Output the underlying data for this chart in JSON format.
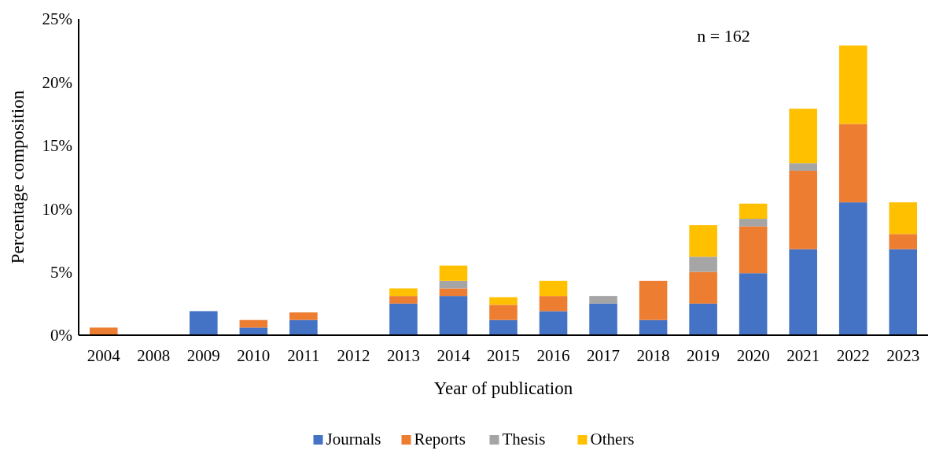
{
  "chart_data": {
    "type": "bar",
    "stacked": true,
    "xlabel": "Year of publication",
    "ylabel": "Percentage composition",
    "annotations": [
      "n = 162"
    ],
    "categories": [
      "2004",
      "2008",
      "2009",
      "2010",
      "2011",
      "2012",
      "2013",
      "2014",
      "2015",
      "2016",
      "2017",
      "2018",
      "2019",
      "2020",
      "2021",
      "2022",
      "2023"
    ],
    "series": [
      {
        "name": "Journals",
        "color": "#4472c4",
        "values": [
          0,
          0,
          1.9,
          0.6,
          1.2,
          0,
          2.5,
          3.1,
          1.2,
          1.9,
          2.5,
          1.2,
          2.5,
          4.9,
          6.8,
          10.5,
          6.8
        ]
      },
      {
        "name": "Reports",
        "color": "#ed7d31",
        "values": [
          0.6,
          0,
          0,
          0.6,
          0.6,
          0,
          0.6,
          0.6,
          1.2,
          1.2,
          0,
          3.1,
          2.5,
          3.7,
          6.2,
          6.2,
          1.2
        ]
      },
      {
        "name": "Thesis",
        "color": "#a5a5a5",
        "values": [
          0,
          0,
          0,
          0,
          0,
          0,
          0,
          0.6,
          0,
          0,
          0.6,
          0,
          1.2,
          0.6,
          0.6,
          0,
          0
        ]
      },
      {
        "name": "Others",
        "color": "#ffc000",
        "values": [
          0,
          0,
          0,
          0,
          0,
          0,
          0.6,
          1.2,
          0.6,
          1.2,
          0,
          0,
          2.5,
          1.2,
          4.3,
          6.2,
          2.5
        ]
      }
    ],
    "ylim": [
      0,
      25
    ],
    "yticks": [
      {
        "value": 0,
        "label": "0%"
      },
      {
        "value": 5,
        "label": "5%"
      },
      {
        "value": 10,
        "label": "10%"
      },
      {
        "value": 15,
        "label": "15%"
      },
      {
        "value": 20,
        "label": "20%"
      },
      {
        "value": 25,
        "label": "25%"
      }
    ],
    "grid": false,
    "legend": "bottom"
  }
}
